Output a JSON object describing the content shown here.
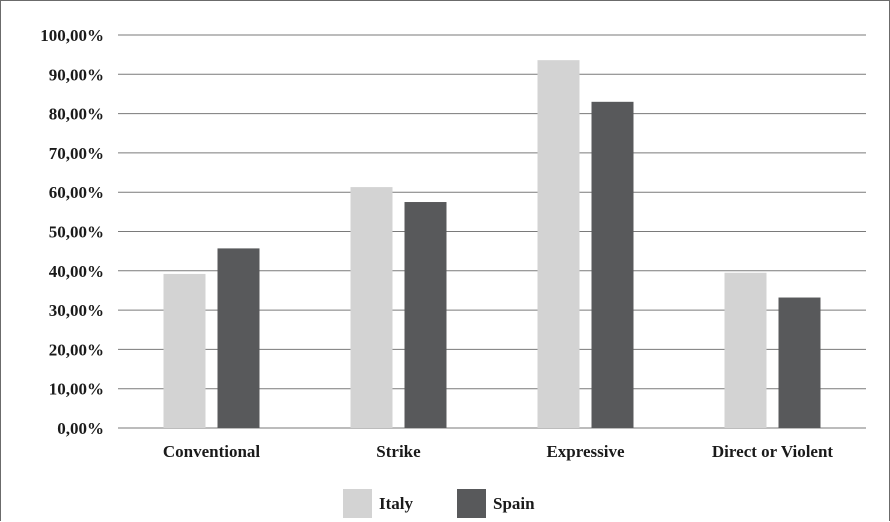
{
  "chart_data": {
    "type": "bar",
    "title": "",
    "xlabel": "",
    "ylabel": "",
    "categories": [
      "Conventional",
      "Strike",
      "Expressive",
      "Direct or Violent"
    ],
    "series": [
      {
        "name": "Italy",
        "color": "#d3d3d3",
        "values": [
          39.2,
          61.3,
          93.6,
          39.5
        ]
      },
      {
        "name": "Spain",
        "color": "#58595b",
        "values": [
          45.7,
          57.5,
          83.0,
          33.2
        ]
      }
    ],
    "ylim": [
      0,
      100
    ],
    "y_ticks": [
      "0,00%",
      "10,00%",
      "20,00%",
      "30,00%",
      "40,00%",
      "50,00%",
      "60,00%",
      "70,00%",
      "80,00%",
      "90,00%",
      "100,00%"
    ],
    "y_tick_values": [
      0,
      10,
      20,
      30,
      40,
      50,
      60,
      70,
      80,
      90,
      100
    ],
    "grid": true,
    "legend_position": "bottom-center"
  }
}
